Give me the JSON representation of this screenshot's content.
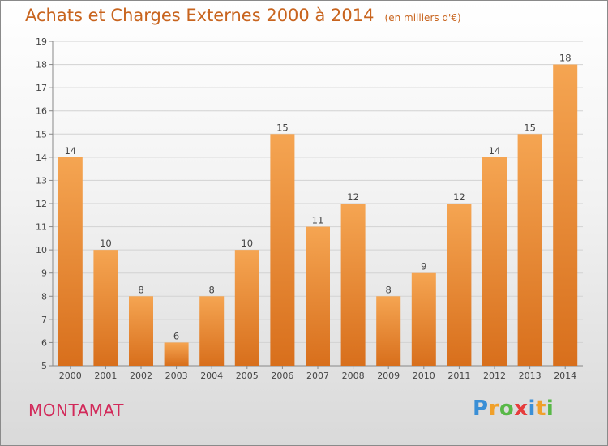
{
  "chart_data": {
    "type": "bar",
    "title": "Achats et Charges Externes 2000 à 2014",
    "subtitle": "(en milliers d'€)",
    "categories": [
      "2000",
      "2001",
      "2002",
      "2003",
      "2004",
      "2005",
      "2006",
      "2007",
      "2008",
      "2009",
      "2010",
      "2011",
      "2012",
      "2013",
      "2014"
    ],
    "values": [
      14,
      10,
      8,
      6,
      8,
      10,
      15,
      11,
      12,
      8,
      9,
      12,
      14,
      15,
      18
    ],
    "ylim": [
      5,
      19
    ],
    "yticks": [
      5,
      6,
      7,
      8,
      9,
      10,
      11,
      12,
      13,
      14,
      15,
      16,
      17,
      18,
      19
    ],
    "grid": true,
    "bar_color_top": "#f5a552",
    "bar_color_bottom": "#d86f1c",
    "grid_color": "#d2d2d2",
    "label_color": "#444444"
  },
  "footer": {
    "commune": "MONTAMAT",
    "brand_letters": [
      "P",
      "r",
      "o",
      "x",
      "i",
      "t",
      "i"
    ],
    "brand_colors": [
      "#3a8fd6",
      "#f0a02a",
      "#58b847",
      "#e63c3c",
      "#3a8fd6",
      "#f0a02a",
      "#58b847"
    ]
  },
  "colors": {
    "title": "#c8641e",
    "commune": "#d22a5a"
  }
}
